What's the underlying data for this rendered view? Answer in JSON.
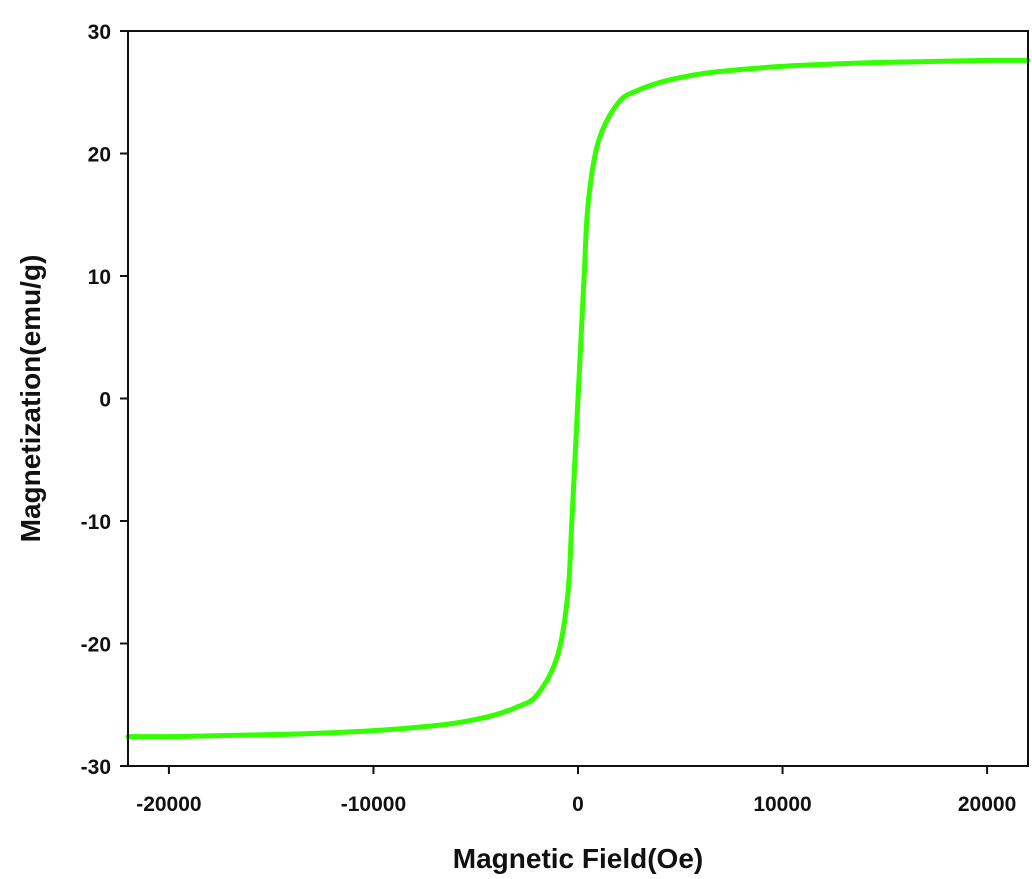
{
  "chart_data": {
    "type": "line",
    "title": "",
    "xlabel": "Magnetic Field(Oe)",
    "ylabel": "Magnetization(emu/g)",
    "xlim": [
      -22000,
      22000
    ],
    "ylim": [
      -30,
      30
    ],
    "x_ticks": [
      -20000,
      -10000,
      0,
      10000,
      20000
    ],
    "y_ticks": [
      -30,
      -20,
      -10,
      0,
      10,
      20,
      30
    ],
    "x_tick_labels": [
      "-20000",
      "-10000",
      "0",
      "10000",
      "20000"
    ],
    "y_tick_labels": [
      "-30",
      "-20",
      "-10",
      "0",
      "10",
      "20",
      "30"
    ],
    "grid": false,
    "legend": "none",
    "series": [
      {
        "color": "#33ff00",
        "x": [
          -22000,
          -20000,
          -17000,
          -14000,
          -11000,
          -9000,
          -7000,
          -6000,
          -5000,
          -4000,
          -3000,
          -2000,
          -1000,
          -500,
          -300,
          0,
          300,
          500,
          1000,
          2000,
          3000,
          4000,
          5000,
          6000,
          7000,
          9000,
          11000,
          14000,
          17000,
          20000,
          22000
        ],
        "y": [
          -27.6,
          -27.6,
          -27.5,
          -27.4,
          -27.2,
          -27.0,
          -26.7,
          -26.5,
          -26.2,
          -25.8,
          -25.2,
          -24.2,
          -21.0,
          -16.0,
          -10.0,
          0.0,
          10.0,
          16.0,
          21.0,
          24.2,
          25.2,
          25.8,
          26.2,
          26.5,
          26.7,
          27.0,
          27.2,
          27.4,
          27.5,
          27.6,
          27.6
        ]
      }
    ]
  }
}
